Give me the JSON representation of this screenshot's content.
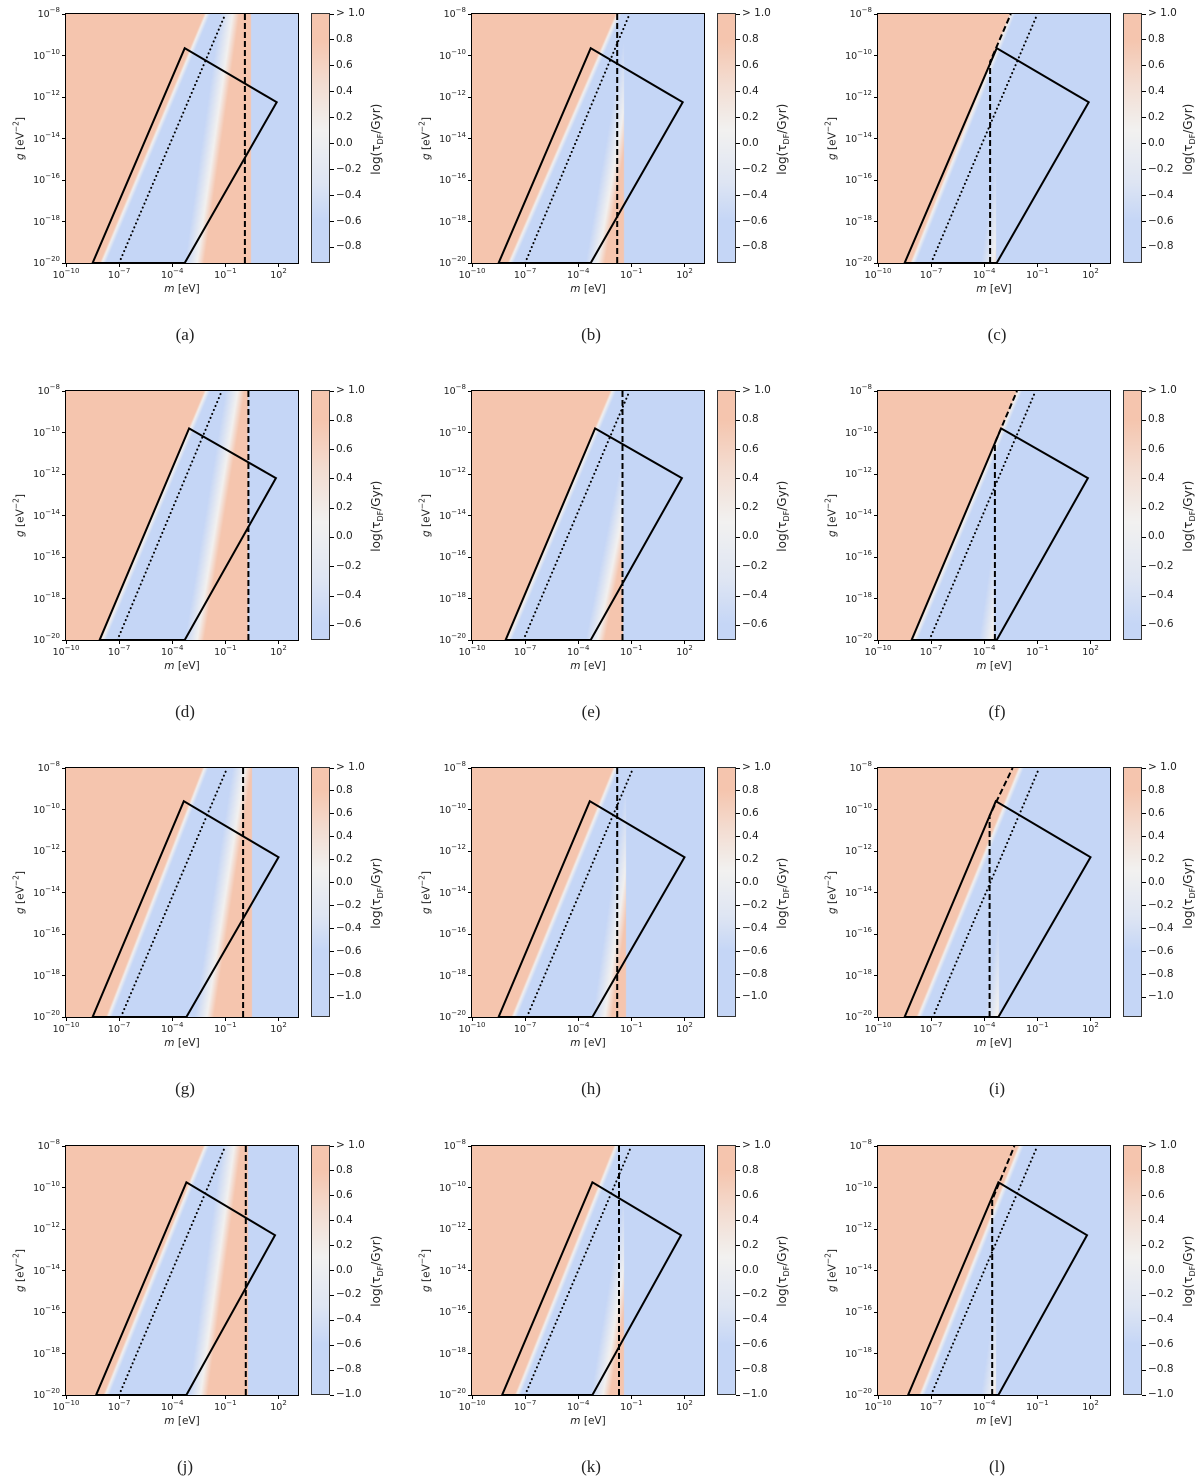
{
  "chart_data": {
    "type": "heatmap",
    "xlabel": {
      "var": "m",
      "unit": " [eV]"
    },
    "ylabel": {
      "var": "g",
      "unit_pre": " [eV",
      "exp": "−2",
      "unit_post": "]"
    },
    "colorbar_label": {
      "pre": "log(τ",
      "sub": "DF",
      "post": "/Gyr)"
    },
    "xscale": "log",
    "yscale": "log",
    "xlim_log10": [
      -10,
      3.1
    ],
    "ylim_log10": [
      -20,
      -8
    ],
    "x_ticks": [
      {
        "base": "10",
        "exp": "−10",
        "value": -10
      },
      {
        "base": "10",
        "exp": "−7",
        "value": -7
      },
      {
        "base": "10",
        "exp": "−4",
        "value": -4
      },
      {
        "base": "10",
        "exp": "−1",
        "value": -1
      },
      {
        "base": "10",
        "exp": "2",
        "value": 2
      }
    ],
    "y_ticks": [
      {
        "base": "10",
        "exp": "−8",
        "value": -8
      },
      {
        "base": "10",
        "exp": "−10",
        "value": -10
      },
      {
        "base": "10",
        "exp": "−12",
        "value": -12
      },
      {
        "base": "10",
        "exp": "−14",
        "value": -14
      },
      {
        "base": "10",
        "exp": "−16",
        "value": -16
      },
      {
        "base": "10",
        "exp": "−18",
        "value": -18
      },
      {
        "base": "10",
        "exp": "−20",
        "value": -20
      }
    ],
    "colormap": {
      "high": "#f5c5ae",
      "mid": "#f2f1f0",
      "low": "#c5d6f6"
    },
    "colorbars": [
      {
        "top_label": "> 1.0",
        "min": -0.92,
        "ticks": [
          "0.8",
          "0.6",
          "0.4",
          "0.2",
          "0.0",
          "−0.2",
          "−0.4",
          "−0.6",
          "−0.8"
        ]
      },
      {
        "top_label": "> 1.0",
        "min": -0.7,
        "ticks": [
          "0.8",
          "0.6",
          "0.4",
          "0.2",
          "0.0",
          "−0.2",
          "−0.4",
          "−0.6"
        ]
      },
      {
        "top_label": "> 1.0",
        "min": -1.17,
        "ticks": [
          "0.8",
          "0.6",
          "0.4",
          "0.2",
          "0.0",
          "−0.2",
          "−0.4",
          "−0.6",
          "−0.8",
          "−1.0"
        ]
      },
      {
        "top_label": "> 1.0",
        "min": -1.0,
        "ticks": [
          "0.8",
          "0.6",
          "0.4",
          "0.2",
          "0.0",
          "−0.2",
          "−0.4",
          "−0.6",
          "−0.8",
          "−1.0"
        ]
      }
    ],
    "panels": [
      {
        "caption": "(a)",
        "red_edge_log10m": [
          -8.1,
          -2.2
        ],
        "band": {
          "white_log10m": [
            -2.6,
            -0.6
          ],
          "cutoff_log10m": 0.45
        },
        "dashed": [
          [
            0.1,
            -20
          ],
          [
            0.1,
            -8
          ]
        ],
        "dotted": [
          [
            -7,
            -20
          ],
          [
            -1,
            -8
          ]
        ],
        "box": [
          [
            -8.5,
            -20
          ],
          [
            -3.3,
            -9.65
          ],
          [
            1.9,
            -12.25
          ],
          [
            -3.3,
            -20
          ]
        ]
      },
      {
        "caption": "(b)",
        "red_edge_log10m": [
          -8.0,
          -1.9
        ],
        "band": {
          "white_log10m": [
            -2.9,
            -0.5
          ],
          "cutoff_log10m": -1.4
        },
        "dashed": [
          [
            -1.8,
            -20
          ],
          [
            -1.8,
            -8
          ]
        ],
        "dotted": [
          [
            -7,
            -20
          ],
          [
            -1.1,
            -8
          ]
        ],
        "box": [
          [
            -8.5,
            -20
          ],
          [
            -3.3,
            -9.65
          ],
          [
            1.9,
            -12.25
          ],
          [
            -3.3,
            -20
          ]
        ]
      },
      {
        "caption": "(c)",
        "red_edge_log10m": [
          -8.2,
          -2.6
        ],
        "band": {
          "white_log10m": [
            -3.5,
            -1.5
          ],
          "cutoff_log10m": -3.35
        },
        "dashed": [
          [
            -3.67,
            -20
          ],
          [
            -3.67,
            -10.3
          ],
          [
            -2.5,
            -8
          ]
        ],
        "dotted": [
          [
            -7,
            -20
          ],
          [
            -1,
            -8
          ]
        ],
        "box": [
          [
            -8.5,
            -20
          ],
          [
            -3.3,
            -9.65
          ],
          [
            1.9,
            -12.25
          ],
          [
            -3.3,
            -20
          ]
        ]
      },
      {
        "caption": "(d)",
        "red_edge_log10m": [
          -8.1,
          -2.2
        ],
        "band": {
          "white_log10m": [
            -2.6,
            -0.3
          ],
          "cutoff_log10m": 0.3
        },
        "dashed": [
          [
            0.3,
            -20
          ],
          [
            0.3,
            -8
          ]
        ],
        "dotted": [
          [
            -7.1,
            -20
          ],
          [
            -1.2,
            -8
          ]
        ],
        "box": [
          [
            -8.1,
            -20
          ],
          [
            -3.05,
            -9.8
          ],
          [
            1.85,
            -12.2
          ],
          [
            -3.3,
            -20
          ]
        ]
      },
      {
        "caption": "(e)",
        "red_edge_log10m": [
          -8.1,
          -2.2
        ],
        "band": {
          "white_log10m": [
            -2.9,
            -0.1
          ],
          "cutoff_log10m": -1.45
        },
        "dashed": [
          [
            -1.5,
            -20
          ],
          [
            -1.5,
            -8
          ]
        ],
        "dotted": [
          [
            -7.1,
            -20
          ],
          [
            -1.1,
            -8
          ]
        ],
        "box": [
          [
            -8.1,
            -20
          ],
          [
            -3.05,
            -9.8
          ],
          [
            1.85,
            -12.2
          ],
          [
            -3.3,
            -20
          ]
        ]
      },
      {
        "caption": "(f)",
        "red_edge_log10m": [
          -8.1,
          -2.2
        ],
        "band": {
          "white_log10m": [
            -3.6,
            -1.6
          ],
          "cutoff_log10m": -3.45
        },
        "dashed": [
          [
            -3.4,
            -20
          ],
          [
            -3.4,
            -10.5
          ],
          [
            -2.15,
            -8
          ]
        ],
        "dotted": [
          [
            -7.1,
            -20
          ],
          [
            -1.1,
            -8
          ]
        ],
        "box": [
          [
            -8.1,
            -20
          ],
          [
            -3.05,
            -9.8
          ],
          [
            1.85,
            -12.2
          ],
          [
            -3.3,
            -20
          ]
        ]
      },
      {
        "caption": "(g)",
        "red_edge_log10m": [
          -7.75,
          -2.3
        ],
        "band": {
          "white_log10m": [
            -2.05,
            0.1
          ],
          "cutoff_log10m": 0.5
        },
        "dashed": [
          [
            0.0,
            -20
          ],
          [
            0.0,
            -8
          ]
        ],
        "dotted": [
          [
            -6.9,
            -20
          ],
          [
            -0.9,
            -8
          ]
        ],
        "box": [
          [
            -8.5,
            -20
          ],
          [
            -3.35,
            -9.6
          ],
          [
            2.0,
            -12.3
          ],
          [
            -3.2,
            -20
          ]
        ]
      },
      {
        "caption": "(h)",
        "red_edge_log10m": [
          -7.8,
          -2.05
        ],
        "band": {
          "white_log10m": [
            -2.5,
            -0.5
          ],
          "cutoff_log10m": -1.3
        },
        "dashed": [
          [
            -1.8,
            -20
          ],
          [
            -1.8,
            -8
          ]
        ],
        "dotted": [
          [
            -6.9,
            -20
          ],
          [
            -0.9,
            -8
          ]
        ],
        "box": [
          [
            -8.5,
            -20
          ],
          [
            -3.35,
            -9.6
          ],
          [
            2.0,
            -12.3
          ],
          [
            -3.2,
            -20
          ]
        ]
      },
      {
        "caption": "(i)",
        "red_edge_log10m": [
          -7.85,
          -2.1
        ],
        "band": {
          "white_log10m": [
            -3.3,
            -1.3
          ],
          "cutoff_log10m": -3.15
        },
        "dashed": [
          [
            -3.7,
            -20
          ],
          [
            -3.7,
            -10.3
          ],
          [
            -2.4,
            -8
          ]
        ],
        "dotted": [
          [
            -6.9,
            -20
          ],
          [
            -0.9,
            -8
          ]
        ],
        "box": [
          [
            -8.5,
            -20
          ],
          [
            -3.35,
            -9.6
          ],
          [
            2.0,
            -12.3
          ],
          [
            -3.2,
            -20
          ]
        ]
      },
      {
        "caption": "(j)",
        "red_edge_log10m": [
          -7.9,
          -2.25
        ],
        "band": {
          "white_log10m": [
            -2.4,
            -0.5
          ],
          "cutoff_log10m": 0.3
        },
        "dashed": [
          [
            0.15,
            -20
          ],
          [
            0.15,
            -8
          ]
        ],
        "dotted": [
          [
            -7,
            -20
          ],
          [
            -1,
            -8
          ]
        ],
        "box": [
          [
            -8.3,
            -20
          ],
          [
            -3.2,
            -9.75
          ],
          [
            1.8,
            -12.3
          ],
          [
            -3.2,
            -20
          ]
        ]
      },
      {
        "caption": "(k)",
        "red_edge_log10m": [
          -7.6,
          -2.0
        ],
        "band": {
          "white_log10m": [
            -2.6,
            -0.3
          ],
          "cutoff_log10m": -1.4
        },
        "dashed": [
          [
            -1.7,
            -20
          ],
          [
            -1.7,
            -8
          ]
        ],
        "dotted": [
          [
            -7,
            -20
          ],
          [
            -1,
            -8
          ]
        ],
        "box": [
          [
            -8.3,
            -20
          ],
          [
            -3.2,
            -9.75
          ],
          [
            1.8,
            -12.3
          ],
          [
            -3.2,
            -20
          ]
        ]
      },
      {
        "caption": "(l)",
        "red_edge_log10m": [
          -7.7,
          -2.1
        ],
        "band": {
          "white_log10m": [
            -3.5,
            -1.5
          ],
          "cutoff_log10m": -3.35
        },
        "dashed": [
          [
            -3.55,
            -20
          ],
          [
            -3.55,
            -10.6
          ],
          [
            -2.3,
            -8
          ]
        ],
        "dotted": [
          [
            -7,
            -20
          ],
          [
            -1,
            -8
          ]
        ],
        "box": [
          [
            -8.3,
            -20
          ],
          [
            -3.2,
            -9.75
          ],
          [
            1.8,
            -12.3
          ],
          [
            -3.2,
            -20
          ]
        ]
      }
    ]
  }
}
